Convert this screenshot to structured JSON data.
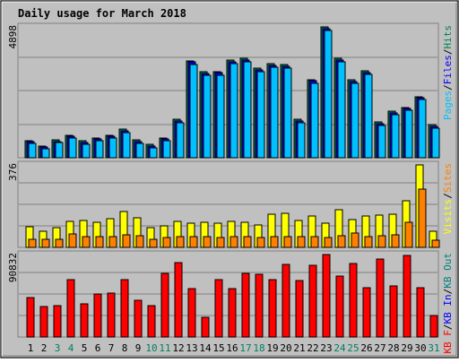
{
  "title": "Daily usage for March 2018",
  "colors": {
    "background": "#c0c0c0",
    "title": "#0000cc",
    "gridline": "#808080",
    "hits": "#00805c",
    "files": "#0000ff",
    "pages": "#00c0ff",
    "visits": "#ffff00",
    "sites": "#ff8000",
    "kbin": "#0000ff",
    "kbout": "#008080",
    "kbf": "#ff0000",
    "weekend_day": "#00805c",
    "weekday": "#000000"
  },
  "chart_data": [
    {
      "type": "bar",
      "panel": "top",
      "ymax_label": "4898",
      "ylim": [
        0,
        4898
      ],
      "legend_parts": [
        {
          "text": "Pages",
          "color": "#00c0ff"
        },
        {
          "text": "/",
          "color": "#000000"
        },
        {
          "text": "Files",
          "color": "#0000ff"
        },
        {
          "text": "/",
          "color": "#000000"
        },
        {
          "text": "Hits",
          "color": "#00805c"
        }
      ],
      "categories": [
        "1",
        "2",
        "3",
        "4",
        "5",
        "6",
        "7",
        "8",
        "9",
        "10",
        "11",
        "12",
        "13",
        "14",
        "15",
        "16",
        "17",
        "18",
        "19",
        "20",
        "21",
        "22",
        "23",
        "24",
        "25",
        "26",
        "27",
        "28",
        "29",
        "30",
        "31"
      ],
      "series": [
        {
          "name": "Hits",
          "values": [
            642,
            445,
            668,
            851,
            635,
            752,
            851,
            1079,
            669,
            487,
            749,
            1434,
            3637,
            3223,
            3230,
            3662,
            3728,
            3350,
            3512,
            3483,
            1435,
            2928,
            4898,
            3720,
            2918,
            3247,
            1336,
            1734,
            1892,
            2296,
            1239
          ]
        },
        {
          "name": "Files",
          "values": [
            592,
            386,
            619,
            802,
            576,
            693,
            792,
            1020,
            610,
            428,
            690,
            1375,
            3578,
            3164,
            3171,
            3603,
            3669,
            3291,
            3453,
            3424,
            1376,
            2869,
            4839,
            3661,
            2859,
            3188,
            1277,
            1675,
            1833,
            2237,
            1180
          ]
        },
        {
          "name": "Pages",
          "values": [
            520,
            320,
            555,
            741,
            512,
            630,
            725,
            955,
            548,
            366,
            625,
            1305,
            3500,
            3090,
            3100,
            3530,
            3595,
            3222,
            3385,
            3355,
            1308,
            2800,
            4765,
            3590,
            2790,
            3120,
            1210,
            1605,
            1765,
            2168,
            1110
          ]
        }
      ]
    },
    {
      "type": "bar",
      "panel": "middle",
      "ymax_label": "376",
      "ylim": [
        0,
        376
      ],
      "legend_parts": [
        {
          "text": "Visits",
          "color": "#ffff00"
        },
        {
          "text": "/",
          "color": "#000000"
        },
        {
          "text": "Sites",
          "color": "#ff8000"
        }
      ],
      "categories": [
        "1",
        "2",
        "3",
        "4",
        "5",
        "6",
        "7",
        "8",
        "9",
        "10",
        "11",
        "12",
        "13",
        "14",
        "15",
        "16",
        "17",
        "18",
        "19",
        "20",
        "21",
        "22",
        "23",
        "24",
        "25",
        "26",
        "27",
        "28",
        "29",
        "30",
        "31"
      ],
      "series": [
        {
          "name": "Visits",
          "values": [
            96,
            72,
            88,
            120,
            122,
            116,
            132,
            162,
            136,
            90,
            100,
            120,
            110,
            116,
            112,
            120,
            116,
            102,
            150,
            155,
            123,
            144,
            110,
            172,
            125,
            145,
            146,
            150,
            212,
            376,
            74
          ]
        },
        {
          "name": "Sites",
          "values": [
            38,
            38,
            38,
            60,
            48,
            47,
            48,
            58,
            55,
            38,
            43,
            47,
            47,
            48,
            46,
            48,
            47,
            43,
            50,
            50,
            47,
            50,
            44,
            55,
            65,
            49,
            53,
            57,
            115,
            267,
            34
          ]
        }
      ]
    },
    {
      "type": "bar",
      "panel": "bottom",
      "ymax_label": "90832",
      "ylim": [
        0,
        90832
      ],
      "legend_parts": [
        {
          "text": "KB F",
          "color": "#ff0000"
        },
        {
          "text": "/",
          "color": "#000000"
        },
        {
          "text": "KB In",
          "color": "#0000ff"
        },
        {
          "text": "/",
          "color": "#000000"
        },
        {
          "text": "KB Out",
          "color": "#008080"
        }
      ],
      "categories": [
        "1",
        "2",
        "3",
        "4",
        "5",
        "6",
        "7",
        "8",
        "9",
        "10",
        "11",
        "12",
        "13",
        "14",
        "15",
        "16",
        "17",
        "18",
        "19",
        "20",
        "21",
        "22",
        "23",
        "24",
        "25",
        "26",
        "27",
        "28",
        "29",
        "30",
        "31"
      ],
      "series": [
        {
          "name": "KB F",
          "values": [
            43000,
            34000,
            35000,
            63000,
            37000,
            47000,
            48500,
            63000,
            40500,
            35000,
            70000,
            81500,
            53500,
            22000,
            63000,
            53000,
            70000,
            69000,
            63000,
            79500,
            62000,
            79000,
            90832,
            67000,
            81000,
            54000,
            86000,
            56000,
            90000,
            54000,
            23500
          ]
        }
      ]
    }
  ],
  "days": [
    {
      "label": "1",
      "weekend": false
    },
    {
      "label": "2",
      "weekend": false
    },
    {
      "label": "3",
      "weekend": true
    },
    {
      "label": "4",
      "weekend": true
    },
    {
      "label": "5",
      "weekend": false
    },
    {
      "label": "6",
      "weekend": false
    },
    {
      "label": "7",
      "weekend": false
    },
    {
      "label": "8",
      "weekend": false
    },
    {
      "label": "9",
      "weekend": false
    },
    {
      "label": "10",
      "weekend": true
    },
    {
      "label": "11",
      "weekend": true
    },
    {
      "label": "12",
      "weekend": false
    },
    {
      "label": "13",
      "weekend": false
    },
    {
      "label": "14",
      "weekend": false
    },
    {
      "label": "15",
      "weekend": false
    },
    {
      "label": "16",
      "weekend": false
    },
    {
      "label": "17",
      "weekend": true
    },
    {
      "label": "18",
      "weekend": true
    },
    {
      "label": "19",
      "weekend": false
    },
    {
      "label": "20",
      "weekend": false
    },
    {
      "label": "21",
      "weekend": false
    },
    {
      "label": "22",
      "weekend": false
    },
    {
      "label": "23",
      "weekend": false
    },
    {
      "label": "24",
      "weekend": true
    },
    {
      "label": "25",
      "weekend": true
    },
    {
      "label": "26",
      "weekend": false
    },
    {
      "label": "27",
      "weekend": false
    },
    {
      "label": "28",
      "weekend": false
    },
    {
      "label": "29",
      "weekend": false
    },
    {
      "label": "30",
      "weekend": false
    },
    {
      "label": "31",
      "weekend": true
    }
  ]
}
